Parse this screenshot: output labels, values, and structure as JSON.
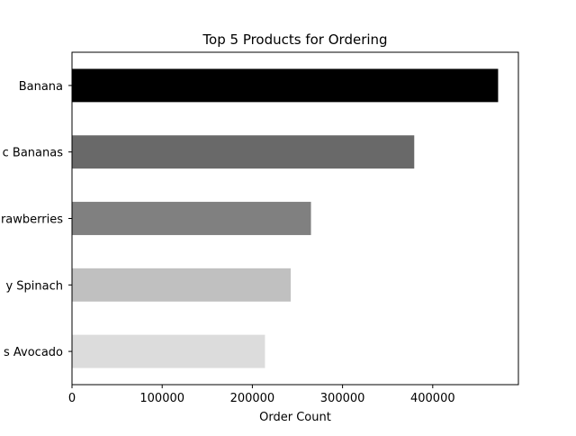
{
  "chart_data": {
    "type": "bar",
    "orientation": "horizontal",
    "title": "Top 5 Products for Ordering",
    "xlabel": "Order Count",
    "ylabel": "",
    "xlim": [
      0,
      495000
    ],
    "grid": false,
    "legend": "none",
    "x_ticks": [
      {
        "value": 0,
        "label": "0"
      },
      {
        "value": 100000,
        "label": "100000"
      },
      {
        "value": 200000,
        "label": "200000"
      },
      {
        "value": 300000,
        "label": "300000"
      },
      {
        "value": 400000,
        "label": "400000"
      }
    ],
    "categories": [
      "Banana",
      "Bag of Organic Bananas",
      "Organic Strawberries",
      "Organic Baby Spinach",
      "Organic Hass Avocado"
    ],
    "category_labels_visible": [
      "Banana",
      "c Bananas",
      "rawberries",
      "y Spinach",
      "s Avocado"
    ],
    "values": [
      472500,
      379500,
      265000,
      242500,
      214000
    ],
    "bar_colors": [
      "#000000",
      "#696969",
      "#808080",
      "#c0c0c0",
      "#dcdcdc"
    ]
  }
}
